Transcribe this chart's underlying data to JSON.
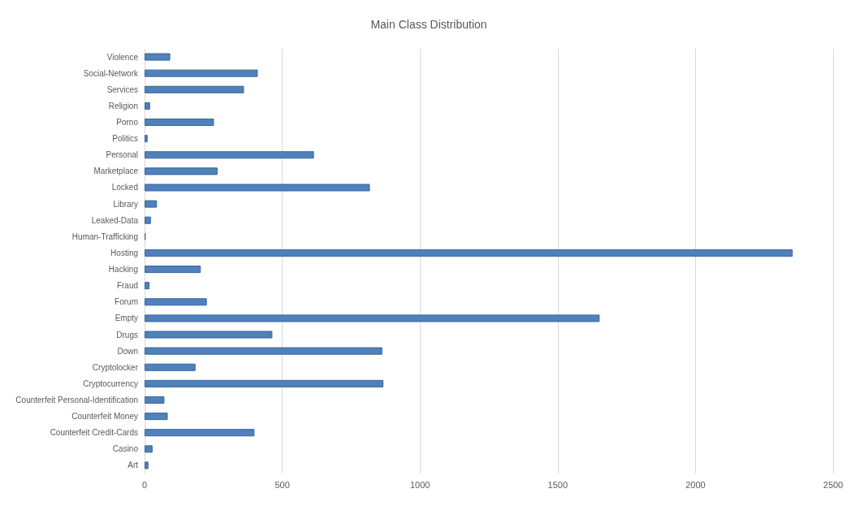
{
  "chart_data": {
    "type": "bar",
    "orientation": "horizontal",
    "title": "Main Class Distribution",
    "categories": [
      "Violence",
      "Social-Network",
      "Services",
      "Religion",
      "Porno",
      "Politics",
      "Personal",
      "Marketplace",
      "Locked",
      "Library",
      "Leaked-Data",
      "Human-Trafficking",
      "Hosting",
      "Hacking",
      "Fraud",
      "Forum",
      "Empty",
      "Drugs",
      "Down",
      "Cryptolocker",
      "Cryptocurrency",
      "Counterfeit Personal-Identification",
      "Counterfeit Money",
      "Counterfeit Credit-Cards",
      "Casino",
      "Art"
    ],
    "values": [
      93,
      411,
      361,
      20,
      252,
      11,
      615,
      265,
      818,
      45,
      23,
      4,
      2353,
      204,
      18,
      226,
      1652,
      464,
      863,
      185,
      867,
      72,
      84,
      399,
      29,
      14
    ],
    "color": "#4f81bd",
    "xlim": [
      0,
      2500
    ],
    "xticks": [
      0,
      500,
      1000,
      1500,
      2000,
      2500
    ],
    "grid": "x"
  }
}
